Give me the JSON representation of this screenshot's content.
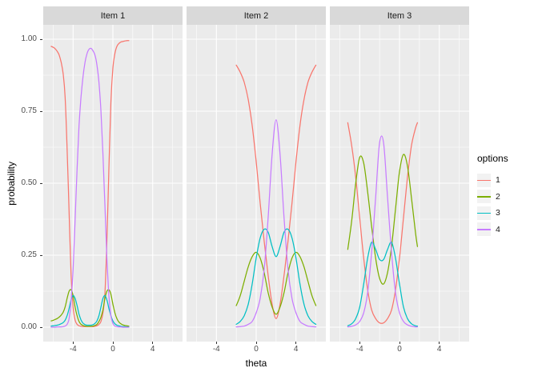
{
  "theme": {
    "panel_bg": "#EBEBEB",
    "strip_bg": "#D9D9D9",
    "grid_color": "#FFFFFF",
    "tick_label_color": "#4D4D4D",
    "strip_text_color": "#1A1A1A",
    "axis_title_color": "#000000",
    "legend_key_bg": "#F2F2F2"
  },
  "chart_data": {
    "type": "line",
    "title": "",
    "xlabel": "theta",
    "ylabel": "probability",
    "xlim": [
      -7,
      7
    ],
    "ylim": [
      -0.05,
      1.05
    ],
    "grid": true,
    "x_major_ticks": [
      -4,
      0,
      4
    ],
    "x_tick_labels": [
      "-4",
      "0",
      "4"
    ],
    "x_minor_gridlines": [
      -6,
      -2,
      2,
      6
    ],
    "y_major_ticks": [
      0,
      0.25,
      0.5,
      0.75,
      1
    ],
    "y_tick_labels": [
      "0.00",
      "0.25",
      "0.50",
      "0.75",
      "1.00"
    ],
    "y_minor_gridlines": [
      0.125,
      0.375,
      0.625,
      0.875
    ],
    "legend": {
      "title": "options",
      "position": "right",
      "entries": [
        {
          "label": "1",
          "color": "#F8766D"
        },
        {
          "label": "2",
          "color": "#7CAE00"
        },
        {
          "label": "3",
          "color": "#00BFC4"
        },
        {
          "label": "4",
          "color": "#C77CFF"
        }
      ]
    },
    "panels": [
      {
        "title": "Item 1",
        "x": [
          -6.2,
          -6,
          -5.8,
          -5.6,
          -5.4,
          -5.2,
          -5,
          -4.8,
          -4.6,
          -4.4,
          -4.2,
          -4,
          -3.8,
          -3.6,
          -3.4,
          -3.2,
          -3,
          -2.8,
          -2.6,
          -2.4,
          -2.2,
          -2,
          -1.8,
          -1.6,
          -1.4,
          -1.2,
          -1,
          -0.8,
          -0.6,
          -0.4,
          -0.2,
          0,
          0.2,
          0.4,
          0.6,
          0.8,
          1,
          1.2,
          1.4,
          1.6
        ],
        "series": [
          {
            "name": "1",
            "color": "#F8766D",
            "y": [
              0.975,
              0.972,
              0.967,
              0.958,
              0.945,
              0.92,
              0.88,
              0.8,
              0.62,
              0.4,
              0.18,
              0.07,
              0.025,
              0.01,
              0.005,
              0.003,
              0.002,
              0.002,
              0.002,
              0.002,
              0.002,
              0.002,
              0.003,
              0.005,
              0.01,
              0.02,
              0.05,
              0.12,
              0.3,
              0.55,
              0.78,
              0.9,
              0.95,
              0.975,
              0.985,
              0.99,
              0.992,
              0.994,
              0.995,
              0.995
            ]
          },
          {
            "name": "2",
            "color": "#7CAE00",
            "y": [
              0.022,
              0.024,
              0.027,
              0.03,
              0.035,
              0.042,
              0.052,
              0.07,
              0.1,
              0.125,
              0.13,
              0.11,
              0.07,
              0.04,
              0.02,
              0.01,
              0.006,
              0.004,
              0.003,
              0.003,
              0.003,
              0.004,
              0.006,
              0.01,
              0.02,
              0.035,
              0.06,
              0.1,
              0.125,
              0.13,
              0.115,
              0.08,
              0.05,
              0.03,
              0.018,
              0.012,
              0.008,
              0.006,
              0.005,
              0.004
            ]
          },
          {
            "name": "3",
            "color": "#00BFC4",
            "y": [
              0.004,
              0.005,
              0.006,
              0.007,
              0.009,
              0.012,
              0.016,
              0.024,
              0.04,
              0.065,
              0.095,
              0.11,
              0.1,
              0.075,
              0.045,
              0.025,
              0.014,
              0.009,
              0.007,
              0.007,
              0.007,
              0.009,
              0.013,
              0.022,
              0.04,
              0.07,
              0.1,
              0.11,
              0.095,
              0.065,
              0.04,
              0.022,
              0.012,
              0.007,
              0.005,
              0.003,
              0.002,
              0.002,
              0.001,
              0.001
            ]
          },
          {
            "name": "4",
            "color": "#C77CFF",
            "y": [
              0,
              0,
              0,
              0.001,
              0.001,
              0.001,
              0.002,
              0.004,
              0.01,
              0.03,
              0.09,
              0.2,
              0.37,
              0.55,
              0.7,
              0.8,
              0.87,
              0.92,
              0.95,
              0.965,
              0.968,
              0.96,
              0.945,
              0.91,
              0.85,
              0.75,
              0.6,
              0.42,
              0.24,
              0.11,
              0.04,
              0.013,
              0.004,
              0.002,
              0.001,
              0.001,
              0,
              0,
              0,
              0
            ]
          }
        ]
      },
      {
        "title": "Item 2",
        "x": [
          -2,
          -1.6,
          -1.2,
          -0.8,
          -0.4,
          0,
          0.4,
          0.8,
          1.2,
          1.6,
          2,
          2.4,
          2.8,
          3.2,
          3.6,
          4,
          4.4,
          4.8,
          5.2,
          5.6,
          6
        ],
        "series": [
          {
            "name": "1",
            "color": "#F8766D",
            "y": [
              0.91,
              0.885,
              0.85,
              0.79,
              0.7,
              0.575,
              0.43,
              0.3,
              0.18,
              0.08,
              0.03,
              0.08,
              0.18,
              0.3,
              0.43,
              0.575,
              0.7,
              0.79,
              0.85,
              0.885,
              0.91
            ]
          },
          {
            "name": "2",
            "color": "#7CAE00",
            "y": [
              0.075,
              0.11,
              0.16,
              0.21,
              0.245,
              0.26,
              0.24,
              0.19,
              0.12,
              0.07,
              0.045,
              0.07,
              0.12,
              0.19,
              0.24,
              0.26,
              0.245,
              0.21,
              0.16,
              0.11,
              0.075
            ]
          },
          {
            "name": "3",
            "color": "#00BFC4",
            "y": [
              0.01,
              0.02,
              0.04,
              0.08,
              0.15,
              0.24,
              0.31,
              0.34,
              0.33,
              0.28,
              0.245,
              0.28,
              0.33,
              0.34,
              0.31,
              0.24,
              0.15,
              0.08,
              0.04,
              0.02,
              0.01
            ]
          },
          {
            "name": "4",
            "color": "#C77CFF",
            "y": [
              0.001,
              0.002,
              0.004,
              0.01,
              0.02,
              0.05,
              0.1,
              0.2,
              0.38,
              0.6,
              0.72,
              0.6,
              0.38,
              0.2,
              0.1,
              0.05,
              0.02,
              0.01,
              0.004,
              0.002,
              0.001
            ]
          }
        ]
      },
      {
        "title": "Item 3",
        "x": [
          -5.2,
          -4.8,
          -4.4,
          -4,
          -3.6,
          -3.2,
          -2.8,
          -2.4,
          -2,
          -1.6,
          -1.2,
          -0.8,
          -0.4,
          0,
          0.4,
          0.8,
          1.2,
          1.6,
          1.8
        ],
        "series": [
          {
            "name": "1",
            "color": "#F8766D",
            "y": [
              0.71,
              0.63,
              0.52,
              0.38,
              0.24,
              0.13,
              0.06,
              0.03,
              0.015,
              0.015,
              0.03,
              0.06,
              0.13,
              0.24,
              0.38,
              0.52,
              0.63,
              0.69,
              0.71
            ]
          },
          {
            "name": "2",
            "color": "#7CAE00",
            "y": [
              0.27,
              0.37,
              0.5,
              0.59,
              0.57,
              0.47,
              0.35,
              0.24,
              0.17,
              0.15,
              0.19,
              0.28,
              0.41,
              0.54,
              0.6,
              0.56,
              0.45,
              0.33,
              0.28
            ]
          },
          {
            "name": "3",
            "color": "#00BFC4",
            "y": [
              0.005,
              0.012,
              0.03,
              0.07,
              0.15,
              0.24,
              0.295,
              0.27,
              0.235,
              0.235,
              0.27,
              0.295,
              0.24,
              0.15,
              0.07,
              0.03,
              0.012,
              0.005,
              0.004
            ]
          },
          {
            "name": "4",
            "color": "#C77CFF",
            "y": [
              0.001,
              0.003,
              0.008,
              0.02,
              0.05,
              0.12,
              0.26,
              0.45,
              0.64,
              0.64,
              0.45,
              0.26,
              0.12,
              0.05,
              0.02,
              0.008,
              0.003,
              0.001,
              0.001
            ]
          }
        ]
      }
    ]
  }
}
